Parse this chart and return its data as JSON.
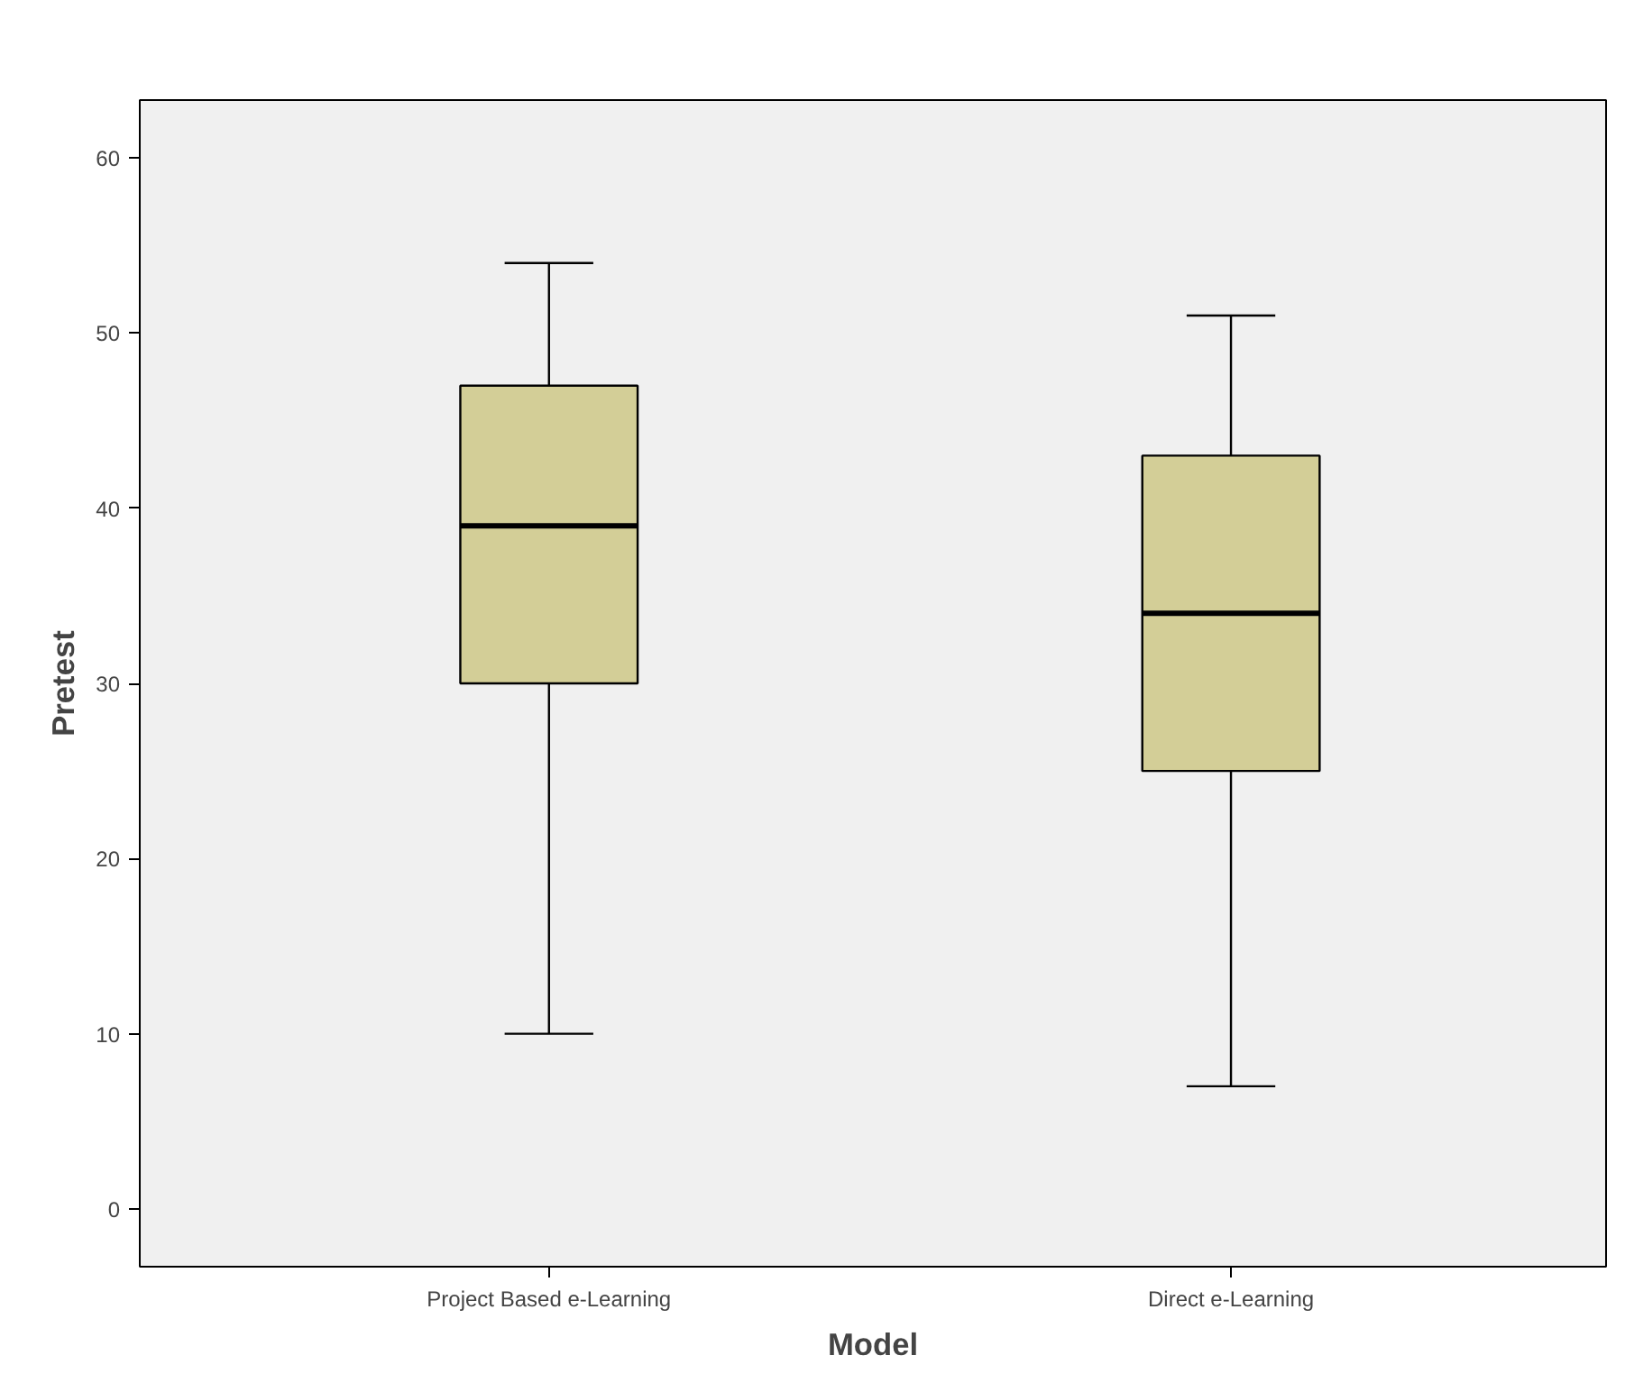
{
  "chart_data": {
    "type": "box",
    "xlabel": "Model",
    "ylabel": "Pretest",
    "categories": [
      "Project Based e-Learning",
      "Direct e-Learning"
    ],
    "boxes": [
      {
        "low": 10,
        "q1": 30,
        "median": 39,
        "q3": 47,
        "high": 54
      },
      {
        "low": 7,
        "q1": 25,
        "median": 34,
        "q3": 43,
        "high": 51
      }
    ],
    "color": "#d3ce97",
    "ylim": [
      -3.3,
      63.3
    ],
    "yticks": [
      0,
      10,
      20,
      30,
      40,
      50,
      60
    ],
    "grid": false
  }
}
